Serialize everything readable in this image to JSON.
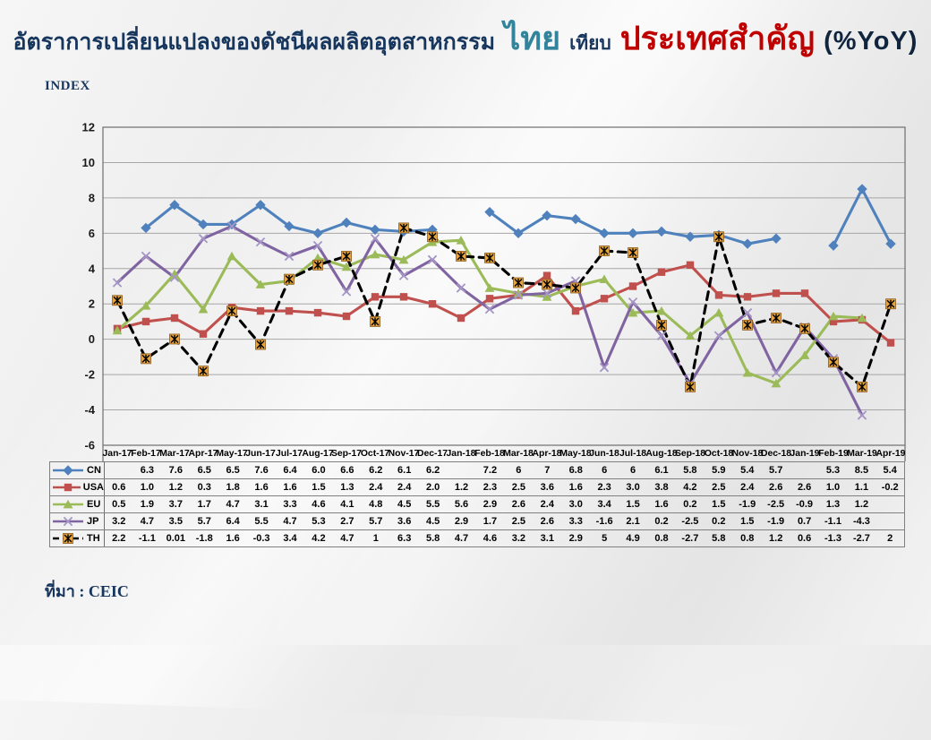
{
  "title": {
    "main": "อัตราการเปลี่ยนแปลงของดัชนีผลผลิตอุตสาหกรรม",
    "thailand": "ไทย",
    "versus": "เทียบ",
    "major_countries": "ประเทศสำคัญ",
    "unit": "(%YoY)"
  },
  "index_label": "INDEX",
  "source_label": "ที่มา : CEIC",
  "colors": {
    "title_navy": "#17365D",
    "title_teal": "#31849B",
    "title_red": "#C00000",
    "gridline": "#A6A6A6",
    "plot_border": "#6E6E6E",
    "cn_blue": "#4F81BD",
    "usa_red": "#C0504D",
    "eu_green": "#9BBB59",
    "jp_purple": "#8064A2",
    "jp_marker": "#A596C6",
    "th_black": "#000000",
    "th_marker_fill": "#E8A33D"
  },
  "chart_data": {
    "type": "line",
    "title": "อัตราการเปลี่ยนแปลงของดัชนีผลผลิตอุตสาหกรรม ไทย เทียบ ประเทศสำคัญ (%YoY)",
    "ylabel": "INDEX",
    "ylim": [
      -6,
      12
    ],
    "ytick_step": 2,
    "yticks": [
      12,
      10,
      8,
      6,
      4,
      2,
      0,
      -2,
      -4,
      -6
    ],
    "grid": "horizontal",
    "legend_position": "table-left",
    "categories": [
      "Jan-17",
      "Feb-17",
      "Mar-17",
      "Apr-17",
      "May-17",
      "Jun-17",
      "Jul-17",
      "Aug-17",
      "Sep-17",
      "Oct-17",
      "Nov-17",
      "Dec-17",
      "Jan-18",
      "Feb-18",
      "Mar-18",
      "Apr-18",
      "May-18",
      "Jun-18",
      "Jul-18",
      "Aug-18",
      "Sep-18",
      "Oct-18",
      "Nov-18",
      "Dec-18",
      "Jan-19",
      "Feb-19",
      "Mar-19",
      "Apr-19"
    ],
    "series": [
      {
        "name": "CN",
        "color": "#4F81BD",
        "marker": "diamond",
        "dash": "solid",
        "values": [
          "",
          "6.3",
          "7.6",
          "6.5",
          "6.5",
          "7.6",
          "6.4",
          "6.0",
          "6.6",
          "6.2",
          "6.1",
          "6.2",
          "",
          "7.2",
          "6",
          "7",
          "6.8",
          "6",
          "6",
          "6.1",
          "5.8",
          "5.9",
          "5.4",
          "5.7",
          "",
          "5.3",
          "8.5",
          "5.4"
        ]
      },
      {
        "name": "USA",
        "color": "#C0504D",
        "marker": "square",
        "dash": "solid",
        "values": [
          "0.6",
          "1.0",
          "1.2",
          "0.3",
          "1.8",
          "1.6",
          "1.6",
          "1.5",
          "1.3",
          "2.4",
          "2.4",
          "2.0",
          "1.2",
          "2.3",
          "2.5",
          "3.6",
          "1.6",
          "2.3",
          "3.0",
          "3.8",
          "4.2",
          "2.5",
          "2.4",
          "2.6",
          "2.6",
          "1.0",
          "1.1",
          "-0.2"
        ]
      },
      {
        "name": "EU",
        "color": "#9BBB59",
        "marker": "triangle",
        "dash": "solid",
        "values": [
          "0.5",
          "1.9",
          "3.7",
          "1.7",
          "4.7",
          "3.1",
          "3.3",
          "4.6",
          "4.1",
          "4.8",
          "4.5",
          "5.5",
          "5.6",
          "2.9",
          "2.6",
          "2.4",
          "3.0",
          "3.4",
          "1.5",
          "1.6",
          "0.2",
          "1.5",
          "-1.9",
          "-2.5",
          "-0.9",
          "1.3",
          "1.2",
          ""
        ]
      },
      {
        "name": "JP",
        "color": "#8064A2",
        "marker": "x",
        "dash": "solid",
        "values": [
          "3.2",
          "4.7",
          "3.5",
          "5.7",
          "6.4",
          "5.5",
          "4.7",
          "5.3",
          "2.7",
          "5.7",
          "3.6",
          "4.5",
          "2.9",
          "1.7",
          "2.5",
          "2.6",
          "3.3",
          "-1.6",
          "2.1",
          "0.2",
          "-2.5",
          "0.2",
          "1.5",
          "-1.9",
          "0.7",
          "-1.1",
          "-4.3",
          ""
        ]
      },
      {
        "name": "TH",
        "color": "#000000",
        "marker": "star",
        "dash": "dashed",
        "values": [
          "2.2",
          "-1.1",
          "0.01",
          "-1.8",
          "1.6",
          "-0.3",
          "3.4",
          "4.2",
          "4.7",
          "1",
          "6.3",
          "5.8",
          "4.7",
          "4.6",
          "3.2",
          "3.1",
          "2.9",
          "5",
          "4.9",
          "0.8",
          "-2.7",
          "5.8",
          "0.8",
          "1.2",
          "0.6",
          "-1.3",
          "-2.7",
          "2"
        ]
      }
    ]
  }
}
